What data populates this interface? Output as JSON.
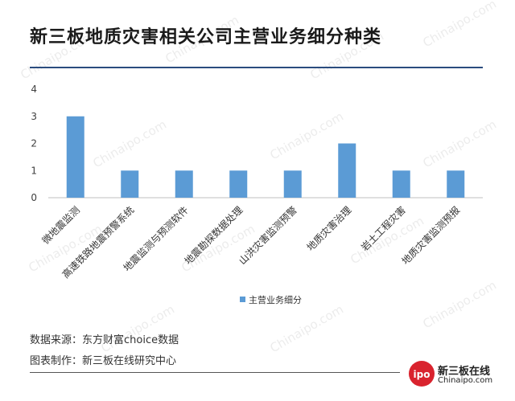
{
  "title": "新三板地质灾害相关公司主营业务细分种类",
  "colors": {
    "bar": "#5b9bd5",
    "title_rule": "#2b4c7e",
    "axis": "#bfbfbf",
    "logo": "#d9232e"
  },
  "chart_data": {
    "type": "bar",
    "title": "新三板地质灾害相关公司主营业务细分种类",
    "categories": [
      "微地震监测",
      "高速铁路地震预警系统",
      "地震监测与预测软件",
      "地震勘探数据处理",
      "山洪灾害监测预警",
      "地质灾害治理",
      "岩土工程灾害",
      "地质灾害监测预报"
    ],
    "series": [
      {
        "name": "主营业务细分",
        "values": [
          3,
          1,
          1,
          1,
          1,
          2,
          1,
          1
        ]
      }
    ],
    "ylim": [
      0,
      4
    ],
    "yticks": [
      "0",
      "1",
      "2",
      "3",
      "4"
    ],
    "grid": false,
    "legend": "bottom-center"
  },
  "footer": {
    "source": "数据来源：东方财富choice数据",
    "maker": "图表制作：新三板在线研究中心"
  },
  "logo": {
    "circle_text": "ipo",
    "top_text": "新三板在线",
    "bottom_text": "Chinaipo.com"
  },
  "watermark_text": "Chinaipo.com"
}
